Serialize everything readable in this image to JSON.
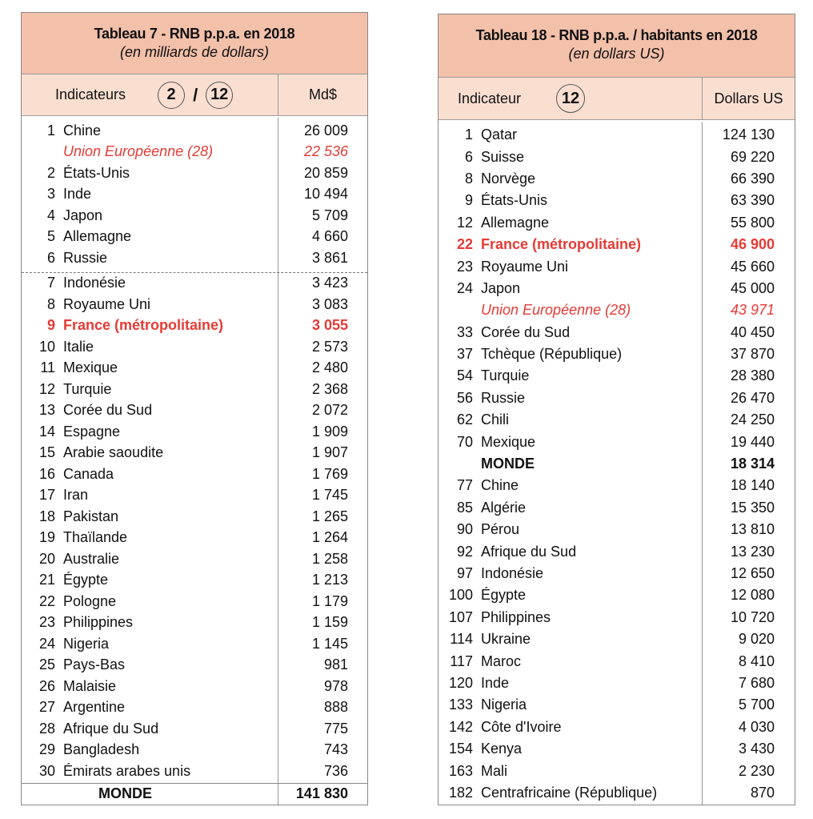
{
  "table7": {
    "title": "Tableau 7 - RNB p.p.a. en 2018",
    "subtitle": "(en milliards de dollars)",
    "indicator_label": "Indicateurs",
    "indicator_a": "2",
    "indicator_sep": "/",
    "indicator_b": "12",
    "unit": "Md$",
    "rows": [
      {
        "rank": "1",
        "name": "Chine",
        "value": "26 009",
        "style": "normal"
      },
      {
        "rank": "",
        "name": "Union Européenne (28)",
        "value": "22 536",
        "style": "eu"
      },
      {
        "rank": "2",
        "name": "États-Unis",
        "value": "20 859",
        "style": "normal"
      },
      {
        "rank": "3",
        "name": "Inde",
        "value": "10 494",
        "style": "normal"
      },
      {
        "rank": "4",
        "name": "Japon",
        "value": "5 709",
        "style": "normal"
      },
      {
        "rank": "5",
        "name": "Allemagne",
        "value": "4 660",
        "style": "normal"
      },
      {
        "rank": "6",
        "name": "Russie",
        "value": "3 861",
        "style": "normal"
      },
      {
        "rank": "7",
        "name": "Indonésie",
        "value": "3 423",
        "style": "normal"
      },
      {
        "rank": "8",
        "name": "Royaume Uni",
        "value": "3 083",
        "style": "normal"
      },
      {
        "rank": "9",
        "name": "France (métropolitaine)",
        "value": "3 055",
        "style": "fr"
      },
      {
        "rank": "10",
        "name": "Italie",
        "value": "2 573",
        "style": "normal"
      },
      {
        "rank": "11",
        "name": "Mexique",
        "value": "2 480",
        "style": "normal"
      },
      {
        "rank": "12",
        "name": "Turquie",
        "value": "2 368",
        "style": "normal"
      },
      {
        "rank": "13",
        "name": "Corée du Sud",
        "value": "2 072",
        "style": "normal"
      },
      {
        "rank": "14",
        "name": "Espagne",
        "value": "1 909",
        "style": "normal"
      },
      {
        "rank": "15",
        "name": "Arabie saoudite",
        "value": "1 907",
        "style": "normal"
      },
      {
        "rank": "16",
        "name": "Canada",
        "value": "1 769",
        "style": "normal"
      },
      {
        "rank": "17",
        "name": "Iran",
        "value": "1 745",
        "style": "normal"
      },
      {
        "rank": "18",
        "name": "Pakistan",
        "value": "1 265",
        "style": "normal"
      },
      {
        "rank": "19",
        "name": "Thaïlande",
        "value": "1 264",
        "style": "normal"
      },
      {
        "rank": "20",
        "name": "Australie",
        "value": "1 258",
        "style": "normal"
      },
      {
        "rank": "21",
        "name": "Égypte",
        "value": "1 213",
        "style": "normal"
      },
      {
        "rank": "22",
        "name": "Pologne",
        "value": "1 179",
        "style": "normal"
      },
      {
        "rank": "23",
        "name": "Philippines",
        "value": "1 159",
        "style": "normal"
      },
      {
        "rank": "24",
        "name": "Nigeria",
        "value": "1 145",
        "style": "normal"
      },
      {
        "rank": "25",
        "name": "Pays-Bas",
        "value": "981",
        "style": "normal"
      },
      {
        "rank": "26",
        "name": "Malaisie",
        "value": "978",
        "style": "normal"
      },
      {
        "rank": "27",
        "name": "Argentine",
        "value": "888",
        "style": "normal"
      },
      {
        "rank": "28",
        "name": "Afrique du Sud",
        "value": "775",
        "style": "normal"
      },
      {
        "rank": "29",
        "name": "Bangladesh",
        "value": "743",
        "style": "normal"
      },
      {
        "rank": "30",
        "name": "Émirats arabes unis",
        "value": "736",
        "style": "normal"
      }
    ],
    "total": {
      "name": "MONDE",
      "value": "141 830"
    }
  },
  "table18": {
    "title": "Tableau 18 - RNB p.p.a. / habitants en 2018",
    "subtitle": "(en dollars US)",
    "indicator_label": "Indicateur",
    "indicator_a": "12",
    "unit": "Dollars US",
    "rows": [
      {
        "rank": "1",
        "name": "Qatar",
        "value": "124 130",
        "style": "normal"
      },
      {
        "rank": "6",
        "name": "Suisse",
        "value": "69 220",
        "style": "normal"
      },
      {
        "rank": "8",
        "name": "Norvège",
        "value": "66 390",
        "style": "normal"
      },
      {
        "rank": "9",
        "name": "États-Unis",
        "value": "63 390",
        "style": "normal"
      },
      {
        "rank": "12",
        "name": "Allemagne",
        "value": "55 800",
        "style": "normal"
      },
      {
        "rank": "22",
        "name": "France (métropolitaine)",
        "value": "46 900",
        "style": "fr"
      },
      {
        "rank": "23",
        "name": "Royaume Uni",
        "value": "45 660",
        "style": "normal"
      },
      {
        "rank": "24",
        "name": "Japon",
        "value": "45 000",
        "style": "normal"
      },
      {
        "rank": "",
        "name": "Union Européenne (28)",
        "value": "43 971",
        "style": "eu"
      },
      {
        "rank": "33",
        "name": "Corée du Sud",
        "value": "40 450",
        "style": "normal"
      },
      {
        "rank": "37",
        "name": "Tchèque (République)",
        "value": "37 870",
        "style": "normal"
      },
      {
        "rank": "54",
        "name": "Turquie",
        "value": "28 380",
        "style": "normal"
      },
      {
        "rank": "56",
        "name": "Russie",
        "value": "26 470",
        "style": "normal"
      },
      {
        "rank": "62",
        "name": "Chili",
        "value": "24 250",
        "style": "normal"
      },
      {
        "rank": "70",
        "name": "Mexique",
        "value": "19 440",
        "style": "normal"
      },
      {
        "rank": "",
        "name": "MONDE",
        "value": "18 314",
        "style": "world"
      },
      {
        "rank": "77",
        "name": "Chine",
        "value": "18 140",
        "style": "normal"
      },
      {
        "rank": "85",
        "name": "Algérie",
        "value": "15 350",
        "style": "normal"
      },
      {
        "rank": "90",
        "name": "Pérou",
        "value": "13 810",
        "style": "normal"
      },
      {
        "rank": "92",
        "name": "Afrique du Sud",
        "value": "13 230",
        "style": "normal"
      },
      {
        "rank": "97",
        "name": "Indonésie",
        "value": "12 650",
        "style": "normal"
      },
      {
        "rank": "100",
        "name": "Égypte",
        "value": "12 080",
        "style": "normal"
      },
      {
        "rank": "107",
        "name": "Philippines",
        "value": "10 720",
        "style": "normal"
      },
      {
        "rank": "114",
        "name": "Ukraine",
        "value": "9 020",
        "style": "normal"
      },
      {
        "rank": "117",
        "name": "Maroc",
        "value": "8 410",
        "style": "normal"
      },
      {
        "rank": "120",
        "name": "Inde",
        "value": "7 680",
        "style": "normal"
      },
      {
        "rank": "133",
        "name": "Nigeria",
        "value": "5 700",
        "style": "normal"
      },
      {
        "rank": "142",
        "name": "Côte d'Ivoire",
        "value": "4 030",
        "style": "normal"
      },
      {
        "rank": "154",
        "name": "Kenya",
        "value": "3 430",
        "style": "normal"
      },
      {
        "rank": "163",
        "name": "Mali",
        "value": "2 230",
        "style": "normal"
      },
      {
        "rank": "182",
        "name": "Centrafricaine (République)",
        "value": "870",
        "style": "normal"
      }
    ]
  },
  "colors": {
    "title_bg": "#f3c0aa",
    "subheader_bg": "#fadfd1",
    "highlight": "#e53b35"
  }
}
